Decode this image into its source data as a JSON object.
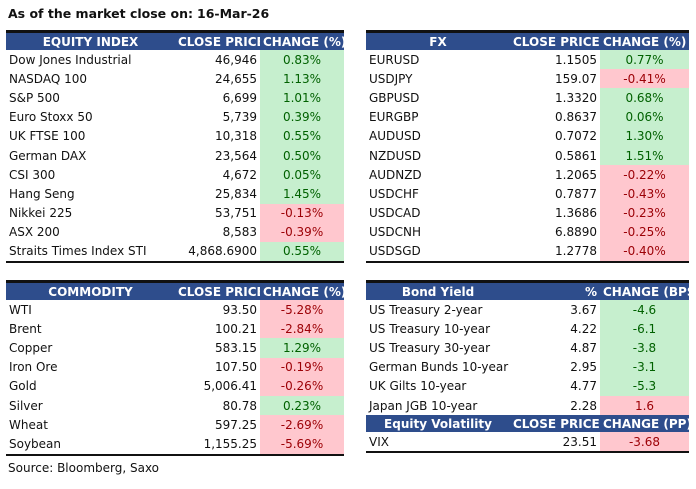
{
  "header": {
    "title": "As of the market close on:",
    "date": "16-Mar-26"
  },
  "colors": {
    "header_bg": "#2e4d8c",
    "positive_bg": "#c6efce",
    "positive_text": "#006100",
    "negative_bg": "#ffc7ce",
    "negative_text": "#9c0006"
  },
  "equity": {
    "headers": [
      "EQUITY INDEX",
      "CLOSE PRICE",
      "CHANGE (%)"
    ],
    "rows": [
      [
        "Dow Jones Industrial",
        "46,946",
        "0.83%",
        "pos"
      ],
      [
        "NASDAQ 100",
        "24,655",
        "1.13%",
        "pos"
      ],
      [
        "S&P 500",
        "6,699",
        "1.01%",
        "pos"
      ],
      [
        "Euro Stoxx 50",
        "5,739",
        "0.39%",
        "pos"
      ],
      [
        "UK FTSE 100",
        "10,318",
        "0.55%",
        "pos"
      ],
      [
        "German DAX",
        "23,564",
        "0.50%",
        "pos"
      ],
      [
        "CSI 300",
        "4,672",
        "0.05%",
        "pos"
      ],
      [
        "Hang Seng",
        "25,834",
        "1.45%",
        "pos"
      ],
      [
        "Nikkei 225",
        "53,751",
        "-0.13%",
        "neg"
      ],
      [
        "ASX 200",
        "8,583",
        "-0.39%",
        "neg"
      ],
      [
        "Straits Times Index STI",
        "4,868.6900",
        "0.55%",
        "pos"
      ]
    ]
  },
  "fx": {
    "headers": [
      "FX",
      "CLOSE PRICE",
      "CHANGE (%)"
    ],
    "rows": [
      [
        "EURUSD",
        "1.1505",
        "0.77%",
        "pos"
      ],
      [
        "USDJPY",
        "159.07",
        "-0.41%",
        "neg"
      ],
      [
        "GBPUSD",
        "1.3320",
        "0.68%",
        "pos"
      ],
      [
        "EURGBP",
        "0.8637",
        "0.06%",
        "pos"
      ],
      [
        "AUDUSD",
        "0.7072",
        "1.30%",
        "pos"
      ],
      [
        "NZDUSD",
        "0.5861",
        "1.51%",
        "pos"
      ],
      [
        "AUDNZD",
        "1.2065",
        "-0.22%",
        "neg"
      ],
      [
        "USDCHF",
        "0.7877",
        "-0.43%",
        "neg"
      ],
      [
        "USDCAD",
        "1.3686",
        "-0.23%",
        "neg"
      ],
      [
        "USDCNH",
        "6.8890",
        "-0.25%",
        "neg"
      ],
      [
        "USDSGD",
        "1.2778",
        "-0.40%",
        "neg"
      ]
    ]
  },
  "commodity": {
    "headers": [
      "COMMODITY",
      "CLOSE PRICE",
      "CHANGE (%)"
    ],
    "rows": [
      [
        "WTI",
        "93.50",
        "-5.28%",
        "neg"
      ],
      [
        "Brent",
        "100.21",
        "-2.84%",
        "neg"
      ],
      [
        "Copper",
        "583.15",
        "1.29%",
        "pos"
      ],
      [
        "Iron Ore",
        "107.50",
        "-0.19%",
        "neg"
      ],
      [
        "Gold",
        "5,006.41",
        "-0.26%",
        "neg"
      ],
      [
        "Silver",
        "80.78",
        "0.23%",
        "pos"
      ],
      [
        "Wheat",
        "597.25",
        "-2.69%",
        "neg"
      ],
      [
        "Soybean",
        "1,155.25",
        "-5.69%",
        "neg"
      ]
    ]
  },
  "bond": {
    "headers": [
      "Bond Yield",
      "%",
      "CHANGE (BPS)"
    ],
    "rows": [
      [
        "US Treasury 2-year",
        "3.67",
        "-4.6",
        "pos"
      ],
      [
        "US Treasury 10-year",
        "4.22",
        "-6.1",
        "pos"
      ],
      [
        "US Treasury 30-year",
        "4.87",
        "-3.8",
        "pos"
      ],
      [
        "German Bunds 10-year",
        "2.95",
        "-3.1",
        "pos"
      ],
      [
        "UK Gilts 10-year",
        "4.77",
        "-5.3",
        "pos"
      ],
      [
        "Japan JGB 10-year",
        "2.28",
        "1.6",
        "neg"
      ]
    ]
  },
  "volatility": {
    "headers": [
      "Equity Volatility",
      "CLOSE PRICE",
      "CHANGE (PP)"
    ],
    "rows": [
      [
        "VIX",
        "23.51",
        "-3.68",
        "neg"
      ]
    ]
  },
  "footer": {
    "source": "Source: Bloomberg, Saxo"
  }
}
